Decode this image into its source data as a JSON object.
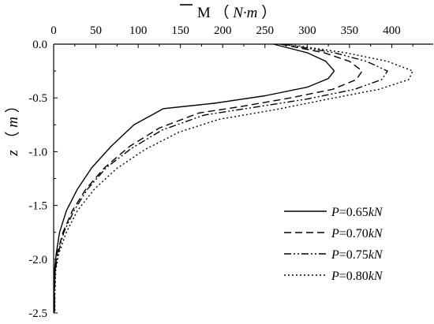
{
  "chart_data": {
    "type": "line",
    "title": "",
    "xlabel": {
      "symbol": "M",
      "unit_open": "（",
      "unit": "N·m",
      "unit_close": "）"
    },
    "ylabel": {
      "symbol": "z",
      "unit_open": "（",
      "unit": "m",
      "unit_close": "）"
    },
    "x_axis_position": "top",
    "y_inverted": false,
    "xlim": [
      0,
      450
    ],
    "ylim": [
      -2.5,
      0.0
    ],
    "x_ticks": [
      0,
      50,
      100,
      150,
      200,
      250,
      300,
      350,
      400
    ],
    "x_tick_labels": [
      "0",
      "50",
      "100",
      "150",
      "200",
      "250",
      "300",
      "350",
      "400"
    ],
    "y_ticks": [
      0.0,
      -0.5,
      -1.0,
      -1.5,
      -2.0,
      -2.5
    ],
    "y_tick_labels": [
      "0.0",
      "-0.5",
      "-1.0",
      "-1.5",
      "-2.0",
      "-2.5"
    ],
    "grid": false,
    "legend_position": "bottom-right",
    "series": [
      {
        "name": "P=0.65kN",
        "label": {
          "p": "P",
          "mid": "=0.65",
          "unit": "kN"
        },
        "dash": "solid",
        "points": [
          [
            260,
            0.0
          ],
          [
            300,
            -0.08
          ],
          [
            322,
            -0.16
          ],
          [
            332,
            -0.25
          ],
          [
            325,
            -0.32
          ],
          [
            300,
            -0.4
          ],
          [
            250,
            -0.48
          ],
          [
            190,
            -0.55
          ],
          [
            130,
            -0.6
          ],
          [
            95,
            -0.75
          ],
          [
            68,
            -0.95
          ],
          [
            45,
            -1.15
          ],
          [
            28,
            -1.35
          ],
          [
            15,
            -1.55
          ],
          [
            7,
            -1.75
          ],
          [
            3,
            -1.95
          ],
          [
            1,
            -2.1
          ],
          [
            0.5,
            -2.3
          ],
          [
            0.5,
            -2.5
          ]
        ]
      },
      {
        "name": "P=0.70kN",
        "label": {
          "p": "P",
          "mid": "=0.70",
          "unit": "kN"
        },
        "dash": "dashed",
        "points": [
          [
            268,
            0.0
          ],
          [
            320,
            -0.08
          ],
          [
            350,
            -0.16
          ],
          [
            365,
            -0.25
          ],
          [
            358,
            -0.33
          ],
          [
            330,
            -0.42
          ],
          [
            280,
            -0.5
          ],
          [
            222,
            -0.58
          ],
          [
            172,
            -0.64
          ],
          [
            125,
            -0.78
          ],
          [
            90,
            -0.95
          ],
          [
            60,
            -1.15
          ],
          [
            38,
            -1.35
          ],
          [
            22,
            -1.55
          ],
          [
            11,
            -1.75
          ],
          [
            4,
            -1.95
          ],
          [
            1.5,
            -2.1
          ],
          [
            1,
            -2.3
          ],
          [
            1,
            -2.5
          ]
        ]
      },
      {
        "name": "P=0.75kN",
        "label": {
          "p": "P",
          "mid": "=0.75",
          "unit": "kN"
        },
        "dash": "dashdotdot",
        "points": [
          [
            272,
            0.0
          ],
          [
            332,
            -0.08
          ],
          [
            370,
            -0.16
          ],
          [
            395,
            -0.25
          ],
          [
            388,
            -0.33
          ],
          [
            356,
            -0.42
          ],
          [
            300,
            -0.51
          ],
          [
            235,
            -0.59
          ],
          [
            178,
            -0.66
          ],
          [
            128,
            -0.8
          ],
          [
            92,
            -0.97
          ],
          [
            62,
            -1.15
          ],
          [
            40,
            -1.35
          ],
          [
            24,
            -1.55
          ],
          [
            12,
            -1.75
          ],
          [
            5,
            -1.95
          ],
          [
            2,
            -2.1
          ],
          [
            1,
            -2.3
          ],
          [
            1,
            -2.5
          ]
        ]
      },
      {
        "name": "P=0.80kN",
        "label": {
          "p": "P",
          "mid": "=0.80",
          "unit": "kN"
        },
        "dash": "dotted",
        "points": [
          [
            276,
            0.0
          ],
          [
            345,
            -0.08
          ],
          [
            395,
            -0.16
          ],
          [
            425,
            -0.25
          ],
          [
            420,
            -0.33
          ],
          [
            385,
            -0.42
          ],
          [
            325,
            -0.51
          ],
          [
            262,
            -0.61
          ],
          [
            195,
            -0.7
          ],
          [
            148,
            -0.82
          ],
          [
            108,
            -0.98
          ],
          [
            74,
            -1.16
          ],
          [
            48,
            -1.35
          ],
          [
            28,
            -1.55
          ],
          [
            15,
            -1.75
          ],
          [
            6,
            -1.95
          ],
          [
            2.5,
            -2.1
          ],
          [
            1.5,
            -2.3
          ],
          [
            1.5,
            -2.5
          ]
        ]
      }
    ]
  }
}
